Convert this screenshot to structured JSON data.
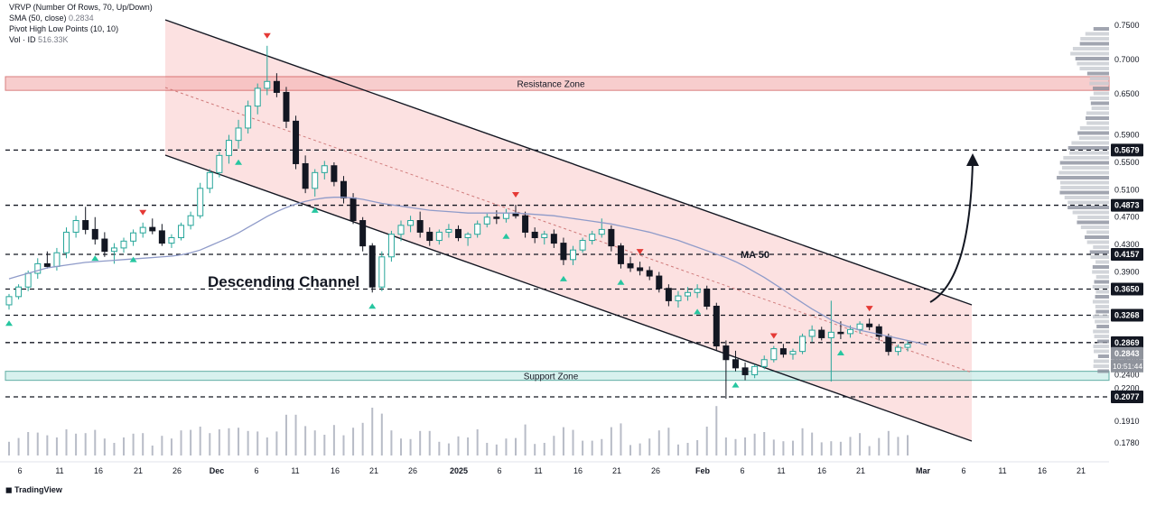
{
  "legend": {
    "vrvp": "VRVP (Number Of Rows, 70, Up/Down)",
    "sma_label": "SMA (50, close)",
    "sma_value": "0.2834",
    "pivot": "Pivot High Low Points (10, 10)",
    "vol_label": "Vol · ID",
    "vol_value": "516.33K"
  },
  "branding": {
    "logo_text": "TradingView"
  },
  "colors": {
    "up": "#26a69a",
    "down": "#131722",
    "channel_fill": "#fbd7d7",
    "resistance": "#f5b8b8",
    "support": "#c7ece7",
    "ma": "#8f9bc9",
    "pivot_high": "#e53935",
    "pivot_low": "#26c6a0"
  },
  "chart_data": {
    "type": "candlestick",
    "symbol_note": "Descending channel analysis",
    "x_ticks": [
      "6",
      "11",
      "16",
      "21",
      "26",
      "Dec",
      "6",
      "11",
      "16",
      "21",
      "26",
      "2025",
      "6",
      "11",
      "16",
      "21",
      "26",
      "Feb",
      "6",
      "11",
      "16",
      "21",
      "Mar",
      "6",
      "11",
      "16",
      "21"
    ],
    "y_ticks": [
      "0.7500",
      "0.7000",
      "0.6500",
      "0.5900",
      "0.5500",
      "0.5100",
      "0.4700",
      "0.4300",
      "0.3900",
      "0.3600",
      "0.2800",
      "0.2600",
      "0.2400",
      "0.2200",
      "0.1910",
      "0.1780"
    ],
    "ylim": [
      0.16,
      0.78
    ],
    "price_badges": [
      {
        "label": "0.5679",
        "value": 0.5679,
        "style": "dark"
      },
      {
        "label": "0.4873",
        "value": 0.4873,
        "style": "dark"
      },
      {
        "label": "0.4157",
        "value": 0.4157,
        "style": "dark"
      },
      {
        "label": "0.3650",
        "value": 0.365,
        "style": "dark"
      },
      {
        "label": "0.3268",
        "value": 0.3268,
        "style": "dark"
      },
      {
        "label": "0.2869",
        "value": 0.2869,
        "style": "dark"
      },
      {
        "label": "0.2843",
        "value": 0.2843,
        "style": "gray"
      },
      {
        "label": "0.2077",
        "value": 0.2077,
        "style": "dark"
      }
    ],
    "countdown": "10:51:44",
    "horizontal_levels": [
      0.5679,
      0.4873,
      0.4157,
      0.365,
      0.3268,
      0.2869,
      0.2077
    ],
    "zones": [
      {
        "name": "Resistance Zone",
        "low": 0.655,
        "high": 0.675
      },
      {
        "name": "Support Zone",
        "low": 0.232,
        "high": 0.245
      }
    ],
    "annotations": {
      "channel_label": "Descending Channel",
      "ma_label": "MA 50"
    },
    "candles": [
      {
        "o": 0.342,
        "h": 0.358,
        "l": 0.335,
        "c": 0.354
      },
      {
        "o": 0.354,
        "h": 0.372,
        "l": 0.35,
        "c": 0.368
      },
      {
        "o": 0.368,
        "h": 0.392,
        "l": 0.362,
        "c": 0.388
      },
      {
        "o": 0.388,
        "h": 0.41,
        "l": 0.38,
        "c": 0.402
      },
      {
        "o": 0.402,
        "h": 0.42,
        "l": 0.395,
        "c": 0.398
      },
      {
        "o": 0.398,
        "h": 0.425,
        "l": 0.392,
        "c": 0.418
      },
      {
        "o": 0.418,
        "h": 0.455,
        "l": 0.41,
        "c": 0.448
      },
      {
        "o": 0.448,
        "h": 0.472,
        "l": 0.44,
        "c": 0.465
      },
      {
        "o": 0.465,
        "h": 0.485,
        "l": 0.445,
        "c": 0.452
      },
      {
        "o": 0.452,
        "h": 0.47,
        "l": 0.43,
        "c": 0.438
      },
      {
        "o": 0.438,
        "h": 0.448,
        "l": 0.412,
        "c": 0.42
      },
      {
        "o": 0.42,
        "h": 0.432,
        "l": 0.402,
        "c": 0.425
      },
      {
        "o": 0.425,
        "h": 0.44,
        "l": 0.418,
        "c": 0.435
      },
      {
        "o": 0.435,
        "h": 0.452,
        "l": 0.428,
        "c": 0.447
      },
      {
        "o": 0.447,
        "h": 0.462,
        "l": 0.44,
        "c": 0.455
      },
      {
        "o": 0.455,
        "h": 0.468,
        "l": 0.445,
        "c": 0.45
      },
      {
        "o": 0.45,
        "h": 0.46,
        "l": 0.428,
        "c": 0.432
      },
      {
        "o": 0.432,
        "h": 0.445,
        "l": 0.425,
        "c": 0.44
      },
      {
        "o": 0.44,
        "h": 0.462,
        "l": 0.436,
        "c": 0.458
      },
      {
        "o": 0.458,
        "h": 0.478,
        "l": 0.452,
        "c": 0.472
      },
      {
        "o": 0.472,
        "h": 0.52,
        "l": 0.468,
        "c": 0.512
      },
      {
        "o": 0.512,
        "h": 0.54,
        "l": 0.505,
        "c": 0.535
      },
      {
        "o": 0.535,
        "h": 0.565,
        "l": 0.528,
        "c": 0.56
      },
      {
        "o": 0.56,
        "h": 0.59,
        "l": 0.548,
        "c": 0.582
      },
      {
        "o": 0.582,
        "h": 0.612,
        "l": 0.57,
        "c": 0.6
      },
      {
        "o": 0.6,
        "h": 0.64,
        "l": 0.592,
        "c": 0.632
      },
      {
        "o": 0.632,
        "h": 0.665,
        "l": 0.62,
        "c": 0.658
      },
      {
        "o": 0.658,
        "h": 0.72,
        "l": 0.648,
        "c": 0.668
      },
      {
        "o": 0.668,
        "h": 0.68,
        "l": 0.645,
        "c": 0.652
      },
      {
        "o": 0.652,
        "h": 0.66,
        "l": 0.6,
        "c": 0.61
      },
      {
        "o": 0.61,
        "h": 0.618,
        "l": 0.54,
        "c": 0.548
      },
      {
        "o": 0.548,
        "h": 0.56,
        "l": 0.505,
        "c": 0.512
      },
      {
        "o": 0.512,
        "h": 0.54,
        "l": 0.5,
        "c": 0.535
      },
      {
        "o": 0.535,
        "h": 0.552,
        "l": 0.525,
        "c": 0.545
      },
      {
        "o": 0.545,
        "h": 0.55,
        "l": 0.515,
        "c": 0.522
      },
      {
        "o": 0.522,
        "h": 0.53,
        "l": 0.49,
        "c": 0.498
      },
      {
        "o": 0.498,
        "h": 0.505,
        "l": 0.46,
        "c": 0.465
      },
      {
        "o": 0.465,
        "h": 0.47,
        "l": 0.42,
        "c": 0.428
      },
      {
        "o": 0.428,
        "h": 0.432,
        "l": 0.36,
        "c": 0.368
      },
      {
        "o": 0.368,
        "h": 0.42,
        "l": 0.362,
        "c": 0.412
      },
      {
        "o": 0.412,
        "h": 0.45,
        "l": 0.405,
        "c": 0.445
      },
      {
        "o": 0.445,
        "h": 0.465,
        "l": 0.435,
        "c": 0.458
      },
      {
        "o": 0.458,
        "h": 0.472,
        "l": 0.448,
        "c": 0.465
      },
      {
        "o": 0.465,
        "h": 0.478,
        "l": 0.44,
        "c": 0.448
      },
      {
        "o": 0.448,
        "h": 0.455,
        "l": 0.428,
        "c": 0.436
      },
      {
        "o": 0.436,
        "h": 0.452,
        "l": 0.43,
        "c": 0.448
      },
      {
        "o": 0.448,
        "h": 0.46,
        "l": 0.44,
        "c": 0.452
      },
      {
        "o": 0.452,
        "h": 0.458,
        "l": 0.435,
        "c": 0.44
      },
      {
        "o": 0.44,
        "h": 0.448,
        "l": 0.428,
        "c": 0.445
      },
      {
        "o": 0.445,
        "h": 0.465,
        "l": 0.44,
        "c": 0.46
      },
      {
        "o": 0.46,
        "h": 0.475,
        "l": 0.455,
        "c": 0.47
      },
      {
        "o": 0.47,
        "h": 0.48,
        "l": 0.46,
        "c": 0.468
      },
      {
        "o": 0.468,
        "h": 0.482,
        "l": 0.462,
        "c": 0.476
      },
      {
        "o": 0.476,
        "h": 0.488,
        "l": 0.468,
        "c": 0.472
      },
      {
        "o": 0.472,
        "h": 0.478,
        "l": 0.44,
        "c": 0.448
      },
      {
        "o": 0.448,
        "h": 0.455,
        "l": 0.432,
        "c": 0.44
      },
      {
        "o": 0.44,
        "h": 0.45,
        "l": 0.43,
        "c": 0.445
      },
      {
        "o": 0.445,
        "h": 0.452,
        "l": 0.425,
        "c": 0.432
      },
      {
        "o": 0.432,
        "h": 0.44,
        "l": 0.4,
        "c": 0.408
      },
      {
        "o": 0.408,
        "h": 0.428,
        "l": 0.4,
        "c": 0.422
      },
      {
        "o": 0.422,
        "h": 0.44,
        "l": 0.418,
        "c": 0.436
      },
      {
        "o": 0.436,
        "h": 0.45,
        "l": 0.43,
        "c": 0.445
      },
      {
        "o": 0.445,
        "h": 0.468,
        "l": 0.44,
        "c": 0.452
      },
      {
        "o": 0.452,
        "h": 0.458,
        "l": 0.42,
        "c": 0.428
      },
      {
        "o": 0.428,
        "h": 0.432,
        "l": 0.395,
        "c": 0.402
      },
      {
        "o": 0.402,
        "h": 0.412,
        "l": 0.39,
        "c": 0.396
      },
      {
        "o": 0.396,
        "h": 0.405,
        "l": 0.385,
        "c": 0.392
      },
      {
        "o": 0.392,
        "h": 0.398,
        "l": 0.378,
        "c": 0.384
      },
      {
        "o": 0.384,
        "h": 0.39,
        "l": 0.36,
        "c": 0.366
      },
      {
        "o": 0.366,
        "h": 0.372,
        "l": 0.34,
        "c": 0.348
      },
      {
        "o": 0.348,
        "h": 0.362,
        "l": 0.338,
        "c": 0.355
      },
      {
        "o": 0.355,
        "h": 0.368,
        "l": 0.348,
        "c": 0.36
      },
      {
        "o": 0.36,
        "h": 0.372,
        "l": 0.352,
        "c": 0.365
      },
      {
        "o": 0.365,
        "h": 0.37,
        "l": 0.335,
        "c": 0.34
      },
      {
        "o": 0.34,
        "h": 0.345,
        "l": 0.275,
        "c": 0.282
      },
      {
        "o": 0.282,
        "h": 0.29,
        "l": 0.205,
        "c": 0.262
      },
      {
        "o": 0.262,
        "h": 0.275,
        "l": 0.245,
        "c": 0.25
      },
      {
        "o": 0.25,
        "h": 0.258,
        "l": 0.232,
        "c": 0.24
      },
      {
        "o": 0.24,
        "h": 0.255,
        "l": 0.235,
        "c": 0.252
      },
      {
        "o": 0.252,
        "h": 0.268,
        "l": 0.248,
        "c": 0.262
      },
      {
        "o": 0.262,
        "h": 0.282,
        "l": 0.258,
        "c": 0.278
      },
      {
        "o": 0.278,
        "h": 0.285,
        "l": 0.265,
        "c": 0.27
      },
      {
        "o": 0.27,
        "h": 0.278,
        "l": 0.262,
        "c": 0.274
      },
      {
        "o": 0.274,
        "h": 0.3,
        "l": 0.27,
        "c": 0.296
      },
      {
        "o": 0.296,
        "h": 0.312,
        "l": 0.288,
        "c": 0.305
      },
      {
        "o": 0.305,
        "h": 0.31,
        "l": 0.29,
        "c": 0.294
      },
      {
        "o": 0.294,
        "h": 0.348,
        "l": 0.23,
        "c": 0.302
      },
      {
        "o": 0.302,
        "h": 0.318,
        "l": 0.292,
        "c": 0.3
      },
      {
        "o": 0.3,
        "h": 0.312,
        "l": 0.294,
        "c": 0.306
      },
      {
        "o": 0.306,
        "h": 0.318,
        "l": 0.3,
        "c": 0.314
      },
      {
        "o": 0.314,
        "h": 0.322,
        "l": 0.305,
        "c": 0.31
      },
      {
        "o": 0.31,
        "h": 0.314,
        "l": 0.29,
        "c": 0.296
      },
      {
        "o": 0.296,
        "h": 0.3,
        "l": 0.268,
        "c": 0.274
      },
      {
        "o": 0.274,
        "h": 0.284,
        "l": 0.268,
        "c": 0.28
      },
      {
        "o": 0.28,
        "h": 0.29,
        "l": 0.274,
        "c": 0.2843
      }
    ],
    "ma50": [
      0.38,
      0.384,
      0.388,
      0.392,
      0.396,
      0.398,
      0.4,
      0.402,
      0.404,
      0.405,
      0.406,
      0.407,
      0.408,
      0.409,
      0.41,
      0.411,
      0.412,
      0.413,
      0.415,
      0.418,
      0.422,
      0.428,
      0.434,
      0.44,
      0.447,
      0.455,
      0.463,
      0.471,
      0.478,
      0.484,
      0.489,
      0.493,
      0.496,
      0.498,
      0.499,
      0.499,
      0.498,
      0.496,
      0.493,
      0.49,
      0.488,
      0.486,
      0.484,
      0.482,
      0.48,
      0.479,
      0.478,
      0.477,
      0.476,
      0.476,
      0.476,
      0.476,
      0.476,
      0.476,
      0.475,
      0.474,
      0.473,
      0.472,
      0.47,
      0.468,
      0.466,
      0.464,
      0.462,
      0.46,
      0.457,
      0.454,
      0.451,
      0.448,
      0.444,
      0.44,
      0.436,
      0.431,
      0.426,
      0.421,
      0.416,
      0.411,
      0.405,
      0.398,
      0.39,
      0.382,
      0.373,
      0.364,
      0.354,
      0.345,
      0.336,
      0.328,
      0.32,
      0.314,
      0.309,
      0.305,
      0.302,
      0.299,
      0.296,
      0.293,
      0.29,
      0.287,
      0.2834
    ],
    "pivot_highs": [
      14,
      27,
      53,
      66,
      80,
      90
    ],
    "pivot_lows": [
      0,
      9,
      13,
      24,
      32,
      38,
      52,
      58,
      64,
      72,
      76,
      87
    ]
  }
}
